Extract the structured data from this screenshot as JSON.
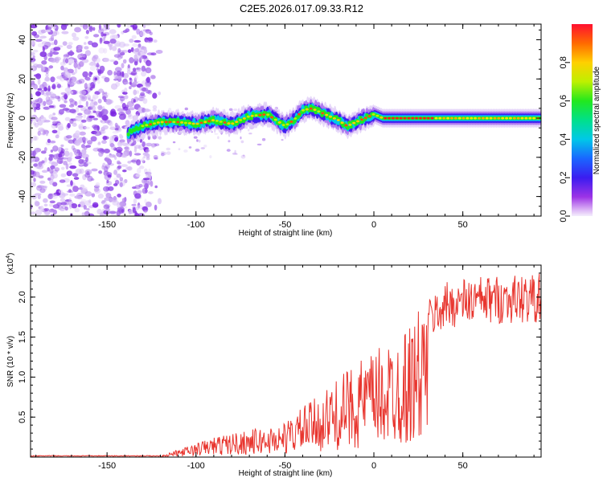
{
  "title": "C2E5.2026.017.09.33.R12",
  "chart_data": [
    {
      "type": "heatmap",
      "xlabel": "Height of straight line (km)",
      "ylabel": "Frequency (Hz)",
      "xlim": [
        -193,
        94
      ],
      "ylim": [
        -50,
        48
      ],
      "xticks": [
        -150,
        -100,
        -50,
        0,
        50
      ],
      "yticks": [
        -40,
        -20,
        0,
        20,
        40
      ],
      "colorbar": {
        "label": "Normalized spectral amplitude",
        "range": [
          0,
          1
        ],
        "ticks": [
          0.0,
          0.2,
          0.4,
          0.6,
          0.8
        ]
      },
      "ridge": {
        "x": [
          -138,
          -130,
          -120,
          -110,
          -100,
          -90,
          -80,
          -70,
          -60,
          -55,
          -50,
          -45,
          -40,
          -35,
          -30,
          -25,
          -20,
          -15,
          -10,
          -5,
          0,
          5,
          10,
          20,
          30,
          40,
          50,
          60,
          70,
          80,
          94
        ],
        "freq": [
          -8,
          -4,
          -2,
          -2,
          -3,
          -1,
          -3,
          1,
          2,
          -1,
          -4,
          -1,
          4,
          5,
          3,
          1,
          -1,
          -4,
          -2,
          0,
          2,
          0,
          0,
          0,
          0,
          0,
          0,
          0,
          0,
          0,
          0
        ]
      }
    },
    {
      "type": "line",
      "xlabel": "Height of straight line (km)",
      "ylabel": "SNR (10 * v/v)",
      "y_multiplier": "(x10^4)",
      "xlim": [
        -193,
        94
      ],
      "ylim": [
        0,
        24000
      ],
      "xticks": [
        -150,
        -100,
        -50,
        0,
        50
      ],
      "yticks": [
        5000,
        10000,
        15000,
        20000
      ],
      "ytick_labels": [
        "0.5",
        "1.0",
        "1.5",
        "2.0"
      ],
      "series": [
        {
          "name": "SNR",
          "color": "#e8352e",
          "envelope": {
            "x": [
              -193,
              -120,
              -110,
              -100,
              -90,
              -80,
              -70,
              -60,
              -50,
              -40,
              -30,
              -20,
              -10,
              0,
              10,
              20,
              30,
              40,
              50,
              60,
              70,
              80,
              94
            ],
            "y": [
              100,
              200,
              800,
              1500,
              2200,
              2600,
              3000,
              3200,
              3800,
              5500,
              6800,
              8500,
              10500,
              11500,
              13000,
              14500,
              17500,
              19500,
              20000,
              20200,
              20300,
              20400,
              20500
            ]
          }
        }
      ]
    }
  ]
}
